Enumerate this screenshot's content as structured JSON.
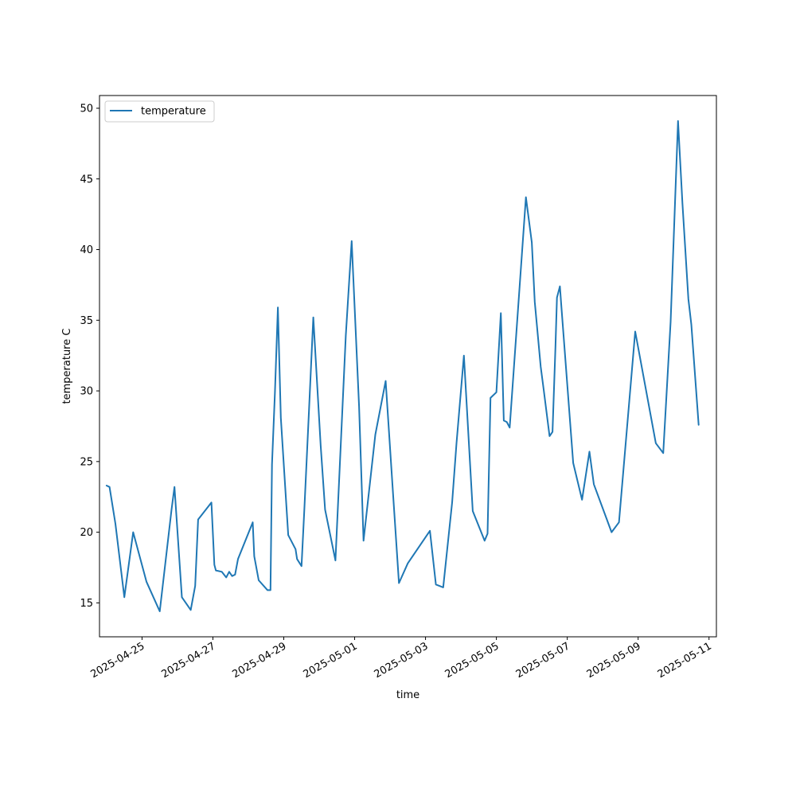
{
  "chart_data": {
    "type": "line",
    "title": "",
    "xlabel": "time",
    "ylabel": "temperature C",
    "xlim": [
      "2025-04-23 19:12",
      "2025-05-11 05:00"
    ],
    "ylim": [
      12.6,
      50.9
    ],
    "y_ticks": [
      15,
      20,
      25,
      30,
      35,
      40,
      45,
      50
    ],
    "x_ticks": [
      "2025-04-25",
      "2025-04-27",
      "2025-04-29",
      "2025-05-01",
      "2025-05-03",
      "2025-05-05",
      "2025-05-07",
      "2025-05-09",
      "2025-05-11"
    ],
    "grid": false,
    "legend_position": "upper left",
    "series": [
      {
        "name": "temperature",
        "color": "#1f77b4",
        "x": [
          "2025-04-24 00:00",
          "2025-04-24 02:00",
          "2025-04-24 06:00",
          "2025-04-24 12:00",
          "2025-04-24 18:00",
          "2025-04-25 03:00",
          "2025-04-25 12:00",
          "2025-04-25 20:00",
          "2025-04-25 22:00",
          "2025-04-26 03:00",
          "2025-04-26 09:00",
          "2025-04-26 12:00",
          "2025-04-26 14:00",
          "2025-04-26 23:00",
          "2025-04-27 01:00",
          "2025-04-27 02:00",
          "2025-04-27 06:00",
          "2025-04-27 09:00",
          "2025-04-27 11:00",
          "2025-04-27 13:00",
          "2025-04-27 15:00",
          "2025-04-27 17:00",
          "2025-04-28 03:00",
          "2025-04-28 04:00",
          "2025-04-28 07:00",
          "2025-04-28 13:00",
          "2025-04-28 15:00",
          "2025-04-28 16:00",
          "2025-04-28 18:00",
          "2025-04-28 20:00",
          "2025-04-28 22:00",
          "2025-04-29 03:00",
          "2025-04-29 08:00",
          "2025-04-29 09:00",
          "2025-04-29 12:00",
          "2025-04-29 14:00",
          "2025-04-29 17:00",
          "2025-04-29 20:00",
          "2025-04-30 01:00",
          "2025-04-30 04:00",
          "2025-04-30 11:00",
          "2025-04-30 18:00",
          "2025-04-30 22:00",
          "2025-05-01 03:00",
          "2025-05-01 06:00",
          "2025-05-01 14:00",
          "2025-05-01 21:00",
          "2025-05-02 02:00",
          "2025-05-02 06:00",
          "2025-05-02 12:00",
          "2025-05-03 03:00",
          "2025-05-03 07:00",
          "2025-05-03 12:00",
          "2025-05-03 18:00",
          "2025-05-03 21:00",
          "2025-05-04 02:00",
          "2025-05-04 08:00",
          "2025-05-04 16:00",
          "2025-05-04 18:00",
          "2025-05-04 20:00",
          "2025-05-05 00:00",
          "2025-05-05 03:00",
          "2025-05-05 05:00",
          "2025-05-05 07:00",
          "2025-05-05 09:00",
          "2025-05-05 20:00",
          "2025-05-06 00:00",
          "2025-05-06 02:00",
          "2025-05-06 06:00",
          "2025-05-06 08:00",
          "2025-05-06 12:00",
          "2025-05-06 14:00",
          "2025-05-06 16:00",
          "2025-05-06 17:00",
          "2025-05-06 19:00",
          "2025-05-06 20:00",
          "2025-05-07 04:00",
          "2025-05-07 10:00",
          "2025-05-07 15:00",
          "2025-05-07 18:00",
          "2025-05-08 06:00",
          "2025-05-08 11:00",
          "2025-05-08 22:00",
          "2025-05-09 12:00",
          "2025-05-09 17:00",
          "2025-05-09 22:00",
          "2025-05-10 03:00",
          "2025-05-10 06:00",
          "2025-05-10 10:00",
          "2025-05-10 12:00",
          "2025-05-10 17:00"
        ],
        "y": [
          23.3,
          23.2,
          20.6,
          15.4,
          20.0,
          16.5,
          14.4,
          21.6,
          23.2,
          15.4,
          14.5,
          16.2,
          20.9,
          22.1,
          17.7,
          17.3,
          17.2,
          16.8,
          17.2,
          16.9,
          17.0,
          18.1,
          20.7,
          18.3,
          16.6,
          15.9,
          15.9,
          24.8,
          29.9,
          35.9,
          28.1,
          19.8,
          18.8,
          18.1,
          17.6,
          21.8,
          28.4,
          35.2,
          26.1,
          21.6,
          18.0,
          33.9,
          40.6,
          28.9,
          19.4,
          26.9,
          30.7,
          22.7,
          16.4,
          17.8,
          20.1,
          16.3,
          16.1,
          22.1,
          26.3,
          32.5,
          21.5,
          19.4,
          19.9,
          29.5,
          29.9,
          35.5,
          27.9,
          27.8,
          27.4,
          43.7,
          40.5,
          36.3,
          31.7,
          30.1,
          26.8,
          27.1,
          33.1,
          36.6,
          37.4,
          36.0,
          24.9,
          22.3,
          25.7,
          23.4,
          20.0,
          20.7,
          34.2,
          26.3,
          25.6,
          34.9,
          49.1,
          43.3,
          36.5,
          34.7,
          27.6
        ]
      }
    ]
  }
}
